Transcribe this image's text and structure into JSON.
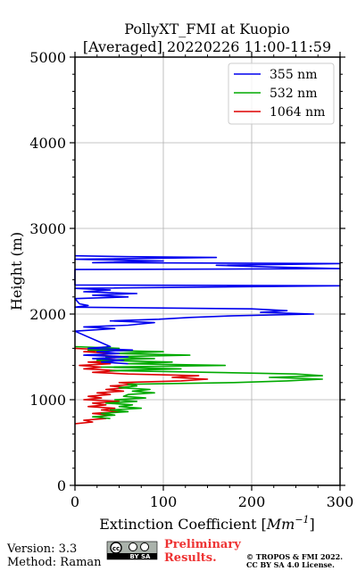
{
  "chart_data": {
    "type": "line",
    "title": "PollyXT_FMI at Kuopio",
    "subtitle": "[Averaged] 20220226 11:00-11:59",
    "xlabel": "Extinction Coefficient [",
    "xlabel_unit": "Mm",
    "xlabel_exp": "−1",
    "xlabel_close": "]",
    "ylabel": "Height (m)",
    "xlim": [
      0,
      300
    ],
    "ylim": [
      0,
      5000
    ],
    "x_ticks": [
      0,
      100,
      200,
      300
    ],
    "x_tick_labels": [
      "0",
      "100",
      "200",
      "300"
    ],
    "y_ticks": [
      0,
      1000,
      2000,
      3000,
      4000,
      5000
    ],
    "y_tick_labels": [
      "0",
      "1000",
      "2000",
      "3000",
      "4000",
      "5000"
    ],
    "grid": true,
    "legend_position": "top-right",
    "series": [
      {
        "name": "355 nm",
        "color": "#0000ee",
        "points": [
          [
            60,
            1420
          ],
          [
            30,
            1440
          ],
          [
            55,
            1460
          ],
          [
            20,
            1480
          ],
          [
            60,
            1500
          ],
          [
            10,
            1520
          ],
          [
            50,
            1540
          ],
          [
            25,
            1560
          ],
          [
            65,
            1580
          ],
          [
            15,
            1600
          ],
          [
            40,
            1620
          ],
          [
            0,
            1800
          ],
          [
            45,
            1830
          ],
          [
            10,
            1850
          ],
          [
            60,
            1870
          ],
          [
            90,
            1900
          ],
          [
            40,
            1920
          ],
          [
            95,
            1940
          ],
          [
            130,
            1960
          ],
          [
            180,
            1980
          ],
          [
            270,
            2000
          ],
          [
            210,
            2020
          ],
          [
            240,
            2040
          ],
          [
            200,
            2060
          ],
          [
            0,
            2080
          ],
          [
            15,
            2100
          ],
          [
            5,
            2120
          ],
          [
            0,
            2180
          ],
          [
            60,
            2200
          ],
          [
            20,
            2220
          ],
          [
            70,
            2240
          ],
          [
            10,
            2260
          ],
          [
            40,
            2280
          ],
          [
            0,
            2300
          ],
          [
            300,
            2330
          ],
          [
            0,
            2340
          ],
          [
            0,
            2520
          ],
          [
            300,
            2530
          ],
          [
            220,
            2550
          ],
          [
            160,
            2570
          ],
          [
            300,
            2590
          ],
          [
            20,
            2600
          ],
          [
            100,
            2620
          ],
          [
            0,
            2640
          ],
          [
            160,
            2660
          ],
          [
            60,
            2670
          ],
          [
            0,
            2680
          ]
        ]
      },
      {
        "name": "532 nm",
        "color": "#00aa00",
        "points": [
          [
            40,
            780
          ],
          [
            20,
            800
          ],
          [
            45,
            820
          ],
          [
            30,
            840
          ],
          [
            60,
            860
          ],
          [
            40,
            880
          ],
          [
            75,
            900
          ],
          [
            50,
            920
          ],
          [
            65,
            940
          ],
          [
            35,
            960
          ],
          [
            70,
            980
          ],
          [
            45,
            1000
          ],
          [
            80,
            1020
          ],
          [
            55,
            1040
          ],
          [
            60,
            1060
          ],
          [
            90,
            1080
          ],
          [
            65,
            1100
          ],
          [
            85,
            1120
          ],
          [
            50,
            1140
          ],
          [
            70,
            1160
          ],
          [
            60,
            1180
          ],
          [
            180,
            1200
          ],
          [
            240,
            1220
          ],
          [
            280,
            1240
          ],
          [
            220,
            1260
          ],
          [
            280,
            1280
          ],
          [
            250,
            1300
          ],
          [
            150,
            1320
          ],
          [
            40,
            1340
          ],
          [
            120,
            1360
          ],
          [
            30,
            1380
          ],
          [
            170,
            1400
          ],
          [
            60,
            1420
          ],
          [
            110,
            1440
          ],
          [
            25,
            1460
          ],
          [
            90,
            1480
          ],
          [
            35,
            1500
          ],
          [
            130,
            1520
          ],
          [
            45,
            1540
          ],
          [
            100,
            1560
          ],
          [
            15,
            1580
          ],
          [
            50,
            1600
          ],
          [
            0,
            1620
          ]
        ]
      },
      {
        "name": "1064 nm",
        "color": "#dd0000",
        "points": [
          [
            0,
            720
          ],
          [
            20,
            740
          ],
          [
            10,
            760
          ],
          [
            35,
            780
          ],
          [
            25,
            800
          ],
          [
            40,
            820
          ],
          [
            20,
            840
          ],
          [
            50,
            860
          ],
          [
            30,
            880
          ],
          [
            45,
            900
          ],
          [
            15,
            920
          ],
          [
            35,
            940
          ],
          [
            20,
            960
          ],
          [
            50,
            980
          ],
          [
            10,
            1000
          ],
          [
            30,
            1020
          ],
          [
            15,
            1040
          ],
          [
            40,
            1060
          ],
          [
            25,
            1080
          ],
          [
            55,
            1100
          ],
          [
            35,
            1120
          ],
          [
            60,
            1140
          ],
          [
            40,
            1160
          ],
          [
            70,
            1180
          ],
          [
            50,
            1200
          ],
          [
            120,
            1220
          ],
          [
            150,
            1240
          ],
          [
            110,
            1260
          ],
          [
            140,
            1280
          ],
          [
            60,
            1300
          ],
          [
            20,
            1320
          ],
          [
            50,
            1340
          ],
          [
            10,
            1360
          ],
          [
            30,
            1380
          ],
          [
            5,
            1400
          ],
          [
            40,
            1420
          ],
          [
            15,
            1440
          ],
          [
            55,
            1460
          ],
          [
            25,
            1480
          ],
          [
            60,
            1500
          ],
          [
            20,
            1520
          ],
          [
            45,
            1540
          ],
          [
            10,
            1560
          ],
          [
            35,
            1580
          ],
          [
            0,
            1600
          ]
        ]
      }
    ]
  },
  "footer": {
    "version": "Version: 3.3",
    "method": "Method: Raman",
    "preliminary_line1": "Preliminary",
    "preliminary_line2": "Results.",
    "copyright_line1": "© TROPOS & FMI 2022.",
    "copyright_line2": "CC BY SA 4.0 License.",
    "license_badge": "BY SA"
  }
}
